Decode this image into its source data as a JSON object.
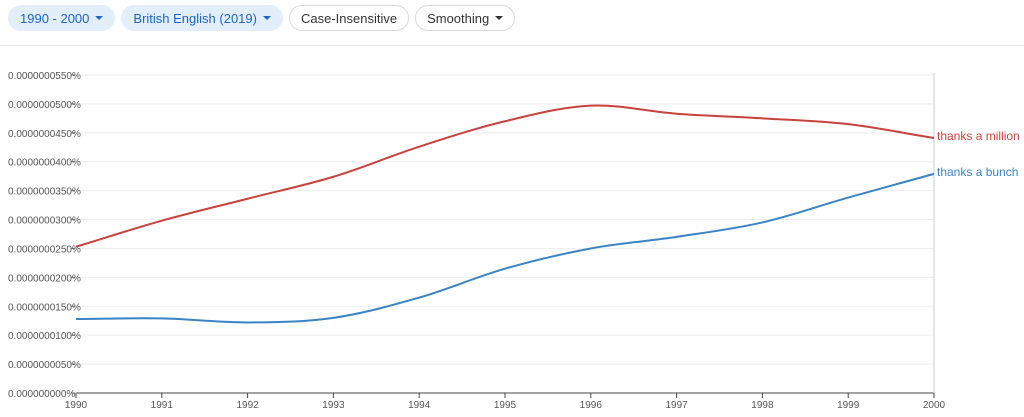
{
  "toolbar": {
    "year_range": "1990 - 2000",
    "corpus": "British English (2019)",
    "case": "Case-Insensitive",
    "smoothing": "Smoothing"
  },
  "colors": {
    "chip_bg": "#e3eefb",
    "chip_text": "#1a66c2",
    "series_million": "#c8433d",
    "series_bunch": "#3a84c6"
  },
  "chart_data": {
    "type": "line",
    "x": [
      1990,
      1991,
      1992,
      1993,
      1994,
      1995,
      1996,
      1997,
      1998,
      1999,
      2000
    ],
    "x_ticks": [
      "1990",
      "1991",
      "1992",
      "1993",
      "1994",
      "1995",
      "1996",
      "1997",
      "1998",
      "1999",
      "2000"
    ],
    "y_ticks": [
      "0.000000000%",
      "0.0000000050%",
      "0.0000000100%",
      "0.0000000150%",
      "0.0000000200%",
      "0.0000000250%",
      "0.0000000300%",
      "0.0000000350%",
      "0.0000000400%",
      "0.0000000450%",
      "0.0000000500%",
      "0.0000000550%"
    ],
    "ylim": [
      0,
      5.5e-09
    ],
    "grid": true,
    "series": [
      {
        "name": "thanks a million",
        "color": "#c8433d",
        "values": [
          2.53e-09,
          2.98e-09,
          3.36e-09,
          3.74e-09,
          4.26e-09,
          4.7e-09,
          4.97e-09,
          4.83e-09,
          4.75e-09,
          4.65e-09,
          4.41e-09
        ]
      },
      {
        "name": "thanks a bunch",
        "color": "#3a84c6",
        "values": [
          1.28e-09,
          1.29e-09,
          1.22e-09,
          1.3e-09,
          1.65e-09,
          2.15e-09,
          2.5e-09,
          2.7e-09,
          2.95e-09,
          3.38e-09,
          3.79e-09
        ]
      }
    ]
  }
}
